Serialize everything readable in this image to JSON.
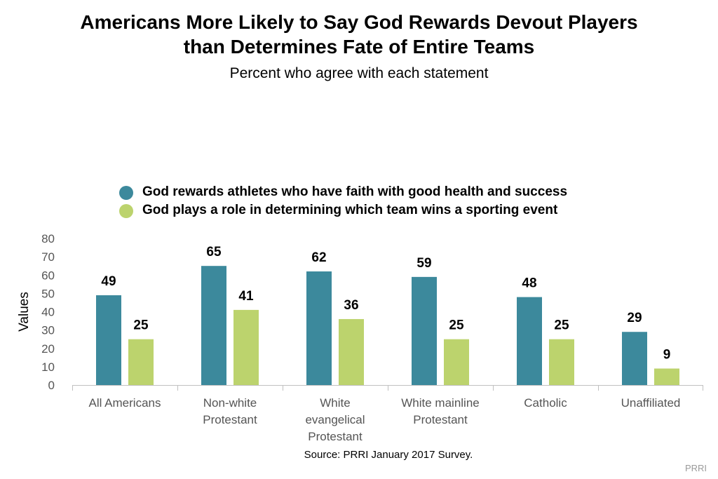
{
  "chart_data": {
    "type": "bar",
    "title": [
      "Americans More Likely to Say God Rewards Devout Players",
      "than Determines Fate of Entire Teams"
    ],
    "subtitle": "Percent who agree with each statement",
    "ylabel": "Values",
    "ylim": [
      0,
      80
    ],
    "yticks": [
      0,
      10,
      20,
      30,
      40,
      50,
      60,
      70,
      80
    ],
    "grid": false,
    "legend_position": "top-center",
    "categories": [
      [
        "All Americans"
      ],
      [
        "Non-white",
        "Protestant"
      ],
      [
        "White",
        "evangelical",
        "Protestant"
      ],
      [
        "White mainline",
        "Protestant"
      ],
      [
        "Catholic"
      ],
      [
        "Unaffiliated"
      ]
    ],
    "series": [
      {
        "name": "God rewards athletes who have faith with good health and success",
        "color": "#3c899c",
        "values": [
          49,
          65,
          62,
          59,
          48,
          29
        ]
      },
      {
        "name": "God plays a role in determining which team wins a sporting event",
        "color": "#bcd36d",
        "values": [
          25,
          41,
          36,
          25,
          25,
          9
        ]
      }
    ],
    "source": "Source: PRRI January 2017 Survey.",
    "credit": "PRRI"
  }
}
